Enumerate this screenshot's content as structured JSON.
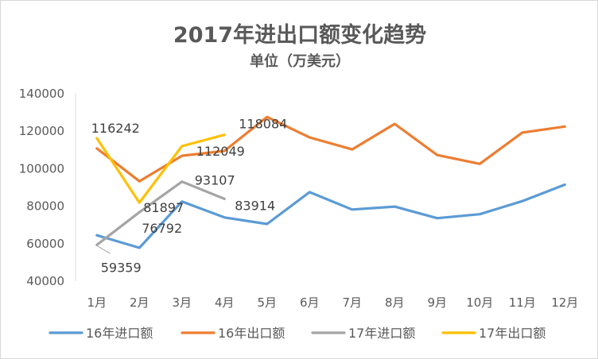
{
  "chart_data": {
    "type": "line",
    "title": "2017年进出口额变化趋势",
    "subtitle": "单位（万美元）",
    "categories": [
      "1月",
      "2月",
      "3月",
      "4月",
      "5月",
      "6月",
      "7月",
      "8月",
      "9月",
      "10月",
      "11月",
      "12月"
    ],
    "ylim": [
      40000,
      140000
    ],
    "yticks": [
      "40000",
      "60000",
      "80000",
      "100000",
      "120000",
      "140000"
    ],
    "grid": false,
    "legend_position": "bottom",
    "series": [
      {
        "name": "16年进口额",
        "color": "#5b9bd5",
        "values": [
          64500,
          57800,
          82500,
          74000,
          70500,
          87500,
          78200,
          79800,
          73600,
          75700,
          82700,
          91500
        ]
      },
      {
        "name": "16年出口额",
        "color": "#ed7d31",
        "values": [
          110800,
          93300,
          106900,
          109500,
          127600,
          116700,
          110300,
          123900,
          107300,
          102600,
          119300,
          122500
        ]
      },
      {
        "name": "17年进口额",
        "color": "#a5a5a5",
        "values": [
          59359,
          76792,
          93107,
          83914,
          null,
          null,
          null,
          null,
          null,
          null,
          null,
          null
        ]
      },
      {
        "name": "17年出口额",
        "color": "#ffc000",
        "values": [
          116242,
          81897,
          112049,
          118084,
          null,
          null,
          null,
          null,
          null,
          null,
          null,
          null
        ]
      }
    ],
    "data_labels": [
      {
        "series": 3,
        "index": 0,
        "text": "116242"
      },
      {
        "series": 3,
        "index": 1,
        "text": "81897"
      },
      {
        "series": 2,
        "index": 2,
        "text": "93107"
      },
      {
        "series": 3,
        "index": 2,
        "text": "112049"
      },
      {
        "series": 3,
        "index": 3,
        "text": "118084"
      },
      {
        "series": 2,
        "index": 1,
        "text": "76792"
      },
      {
        "series": 2,
        "index": 3,
        "text": "83914"
      },
      {
        "series": 2,
        "index": 0,
        "text": "59359"
      }
    ]
  }
}
